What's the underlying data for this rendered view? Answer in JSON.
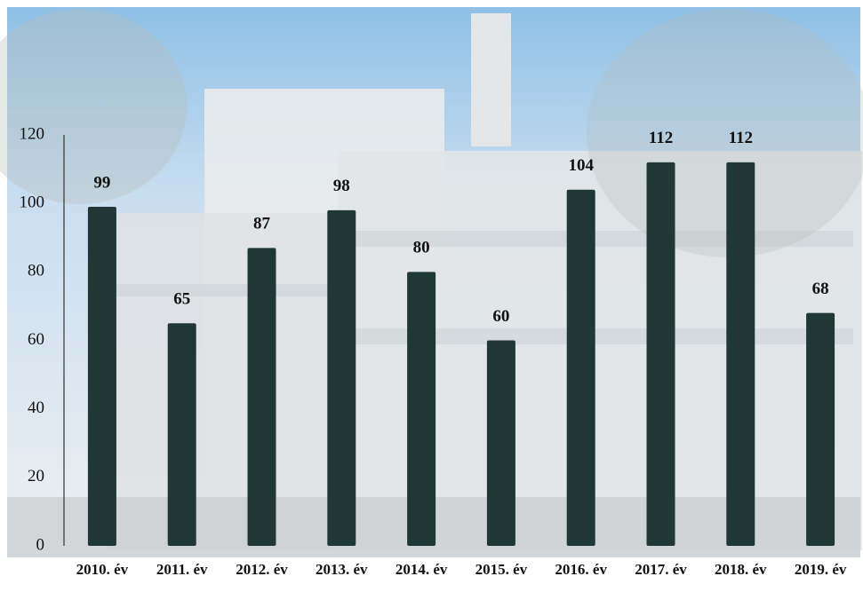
{
  "chart_data": {
    "type": "bar",
    "categories": [
      "2010. év",
      "2011. év",
      "2012. év",
      "2013. év",
      "2014. év",
      "2015. év",
      "2016. év",
      "2017. év",
      "2018. év",
      "2019. év"
    ],
    "values": [
      99,
      65,
      87,
      98,
      80,
      60,
      104,
      112,
      112,
      68
    ],
    "color": "#1f3836",
    "ylim": [
      0,
      120
    ],
    "yticks": [
      0,
      20,
      40,
      60,
      80,
      100,
      120
    ],
    "grid": false
  }
}
